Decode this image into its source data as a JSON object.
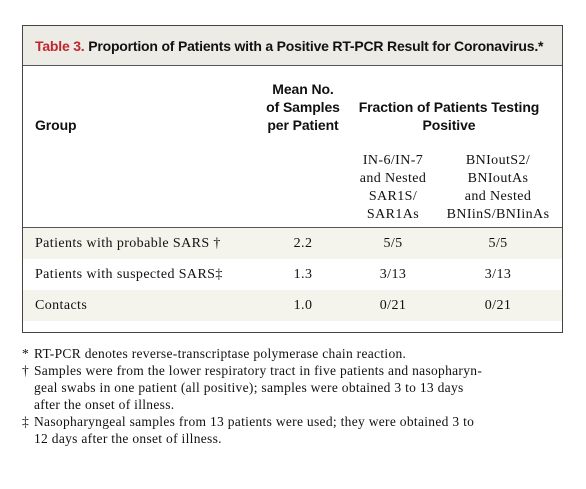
{
  "table": {
    "label": "Table 3.",
    "title": "Proportion of Patients with a Positive RT-PCR Result for Coronavirus.*",
    "headers": {
      "group": "Group",
      "mean": "Mean No.\nof Samples\nper Patient",
      "fraction": "Fraction of Patients Testing\nPositive",
      "sub_a": "IN-6/IN-7\nand Nested\nSAR1S/\nSAR1As",
      "sub_b": "BNIoutS2/\nBNIoutAs\nand Nested\nBNIinS/BNIinAs"
    },
    "rows": [
      {
        "group": "Patients with probable SARS †",
        "mean": "2.2",
        "a": "5/5",
        "b": "5/5"
      },
      {
        "group": "Patients with suspected SARS‡",
        "mean": "1.3",
        "a": "3/13",
        "b": "3/13"
      },
      {
        "group": "Contacts",
        "mean": "1.0",
        "a": "0/21",
        "b": "0/21"
      }
    ]
  },
  "footnotes": [
    {
      "symbol": "*",
      "text": "RT-PCR denotes reverse-transcriptase polymerase chain reaction."
    },
    {
      "symbol": "†",
      "text": "Samples were from the lower respiratory tract in five patients and nasopharyn-\ngeal swabs in one patient (all positive); samples were obtained 3 to 13 days\nafter the onset of illness."
    },
    {
      "symbol": "‡",
      "text": "Nasopharyngeal samples from 13 patients were used; they were obtained 3 to\n12 days after the onset of illness."
    }
  ],
  "colors": {
    "label": "#c0262d",
    "title_band": "#ecebe6",
    "row_shade": "#f4f3ec"
  }
}
